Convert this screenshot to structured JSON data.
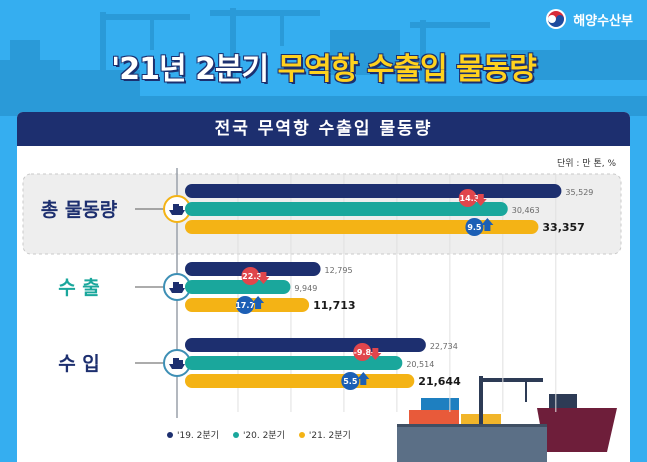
{
  "logo": {
    "text": "해양수산부",
    "icon": "ministry-taegeuk-icon"
  },
  "title": {
    "part1": "'21년 2분기 ",
    "part2": "무역항 수출입 물동량"
  },
  "panel": {
    "title": "전국 무역항 수출입 물동량",
    "unit": "단위 : 만 톤, %"
  },
  "colors": {
    "navy": "#1d2f6f",
    "teal": "#1aa79c",
    "yellow": "#f4b315",
    "down": "#e0464c",
    "up": "#1c5fb5",
    "bg": "#35aef0"
  },
  "chart_data": {
    "type": "bar",
    "orientation": "horizontal",
    "categories": [
      "총 물동량",
      "수 출",
      "수 입"
    ],
    "category_icons": [
      "ship-icon",
      "ship-icon",
      "ship-icon"
    ],
    "series": [
      {
        "name": "'19. 2분기",
        "values": [
          35529,
          12795,
          22734
        ]
      },
      {
        "name": "'20. 2분기",
        "values": [
          30463,
          9949,
          20514
        ]
      },
      {
        "name": "'21. 2분기",
        "values": [
          33357,
          11713,
          21644
        ]
      }
    ],
    "value_labels": [
      [
        "35,529",
        "30,463",
        "33,357"
      ],
      [
        "12,795",
        "9,949",
        "11,713"
      ],
      [
        "22,734",
        "20,514",
        "21,644"
      ]
    ],
    "changes": [
      {
        "down": -14.3,
        "up": 9.5,
        "down_label": "-14.3",
        "up_label": "9.5"
      },
      {
        "down": -22.2,
        "up": 17.7,
        "down_label": "-22.2",
        "up_label": "17.7"
      },
      {
        "down": -9.8,
        "up": 5.5,
        "down_label": "-9.8",
        "up_label": "5.5"
      }
    ],
    "xlim": [
      0,
      37000
    ],
    "legend_position": "bottom-left",
    "grid": "vertical"
  }
}
